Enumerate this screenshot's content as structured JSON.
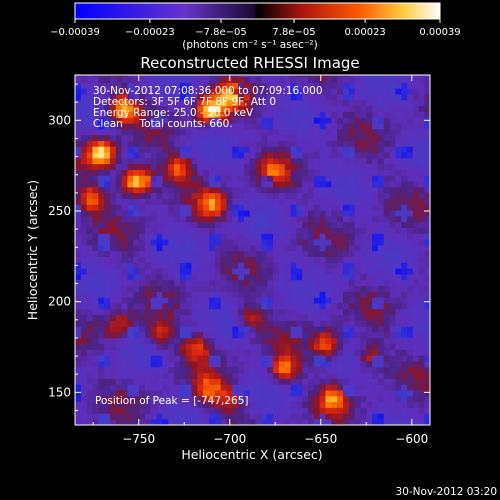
{
  "chart_data": {
    "type": "heatmap",
    "title": "Reconstructed RHESSI Image",
    "xlabel": "Heliocentric X (arcsec)",
    "ylabel": "Heliocentric Y (arcsec)",
    "xlim": [
      -785,
      -590
    ],
    "ylim": [
      132,
      325
    ],
    "xticks": [
      -750,
      -700,
      -650,
      -600
    ],
    "yticks": [
      150,
      200,
      250,
      300
    ],
    "xtick_labels": [
      "−750",
      "−700",
      "−650",
      "−600"
    ],
    "ytick_labels": [
      "150",
      "200",
      "250",
      "300"
    ],
    "colorbar": {
      "ticks": [
        -0.00039,
        -0.00023,
        -7.8e-05,
        7.8e-05,
        0.00023,
        0.00039
      ],
      "tick_labels": [
        "−0.00039",
        "−0.00023",
        "−7.8e−05",
        "7.8e−05",
        "0.00023",
        "0.00039"
      ],
      "unit_label": "(photons cm⁻² s⁻¹ asec⁻²)",
      "colors": [
        "#0000ff",
        "#6633cc",
        "#5a28a8",
        "#000000",
        "#aa1410",
        "#ff5a00",
        "#ffcc40",
        "#ffffff"
      ]
    },
    "grid": false,
    "sources": [
      {
        "x": -772,
        "y": 280,
        "strength": 1.0
      },
      {
        "x": -755,
        "y": 265,
        "strength": 0.85
      },
      {
        "x": -760,
        "y": 305,
        "strength": 0.9
      },
      {
        "x": -778,
        "y": 255,
        "strength": 0.6
      },
      {
        "x": -712,
        "y": 304,
        "strength": 0.95
      },
      {
        "x": -700,
        "y": 312,
        "strength": 0.7
      },
      {
        "x": -730,
        "y": 272,
        "strength": 0.6
      },
      {
        "x": -747,
        "y": 265,
        "strength": 0.55
      },
      {
        "x": -711,
        "y": 252,
        "strength": 0.6
      },
      {
        "x": -678,
        "y": 270,
        "strength": 0.5
      },
      {
        "x": -762,
        "y": 185,
        "strength": 0.45
      },
      {
        "x": -740,
        "y": 181,
        "strength": 0.45
      },
      {
        "x": -713,
        "y": 150,
        "strength": 0.55
      },
      {
        "x": -672,
        "y": 162,
        "strength": 0.7
      },
      {
        "x": -648,
        "y": 175,
        "strength": 0.65
      },
      {
        "x": -645,
        "y": 145,
        "strength": 0.6
      },
      {
        "x": -625,
        "y": 168,
        "strength": 0.5
      },
      {
        "x": -720,
        "y": 173,
        "strength": 0.5
      },
      {
        "x": -701,
        "y": 145,
        "strength": 0.45
      },
      {
        "x": -690,
        "y": 190,
        "strength": 0.4
      }
    ],
    "annotations": {
      "time_range": "30-Nov-2012 07:08:36.000 to 07:09:16.000",
      "detectors": "Detectors: 3F 5F 6F 7F 8F 9F, Att 0",
      "energy": "Energy Range: 25.0 - 50.0 keV",
      "clean": "Clean     Total counts: 660.",
      "peak": "Position of Peak = [-747,265]"
    }
  },
  "footer": {
    "timestamp": "30-Nov-2012 03:20"
  }
}
